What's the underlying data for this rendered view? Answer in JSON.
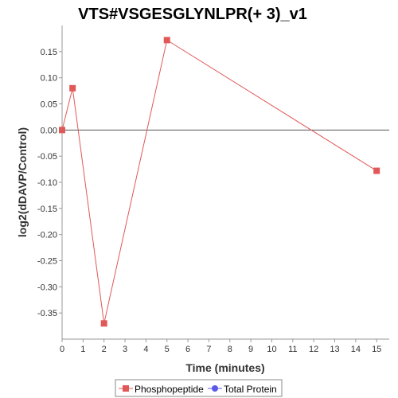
{
  "chart_data": {
    "type": "line",
    "title": "VTS#VSGESGLYNLPR(+ 3)_v1",
    "xlabel": "Time (minutes)",
    "ylabel": "log2(dDAVP/Control)",
    "xlim": [
      0,
      15.6
    ],
    "ylim": [
      -0.4,
      0.2
    ],
    "xticks": [
      0,
      1,
      2,
      3,
      4,
      5,
      6,
      7,
      8,
      9,
      10,
      11,
      12,
      13,
      14,
      15
    ],
    "yticks": [
      0.15,
      0.1,
      0.05,
      0.0,
      -0.05,
      -0.1,
      -0.15,
      -0.2,
      -0.25,
      -0.3,
      -0.35
    ],
    "ytick_labels": [
      "0.15",
      "0.10",
      "0.05",
      "0.00",
      "-0.05",
      "-0.10",
      "-0.15",
      "-0.20",
      "-0.25",
      "-0.30",
      "-0.35"
    ],
    "grid": false,
    "zero_line": true,
    "legend_position": "bottom",
    "series": [
      {
        "name": "Phosphopeptide",
        "color": "#e05858",
        "marker": "square",
        "x": [
          0,
          0.5,
          2,
          5,
          15
        ],
        "y": [
          0.0,
          0.08,
          -0.37,
          0.172,
          -0.078
        ]
      },
      {
        "name": "Total Protein",
        "color": "#5a5ae6",
        "marker": "circle",
        "x": [],
        "y": []
      }
    ]
  }
}
